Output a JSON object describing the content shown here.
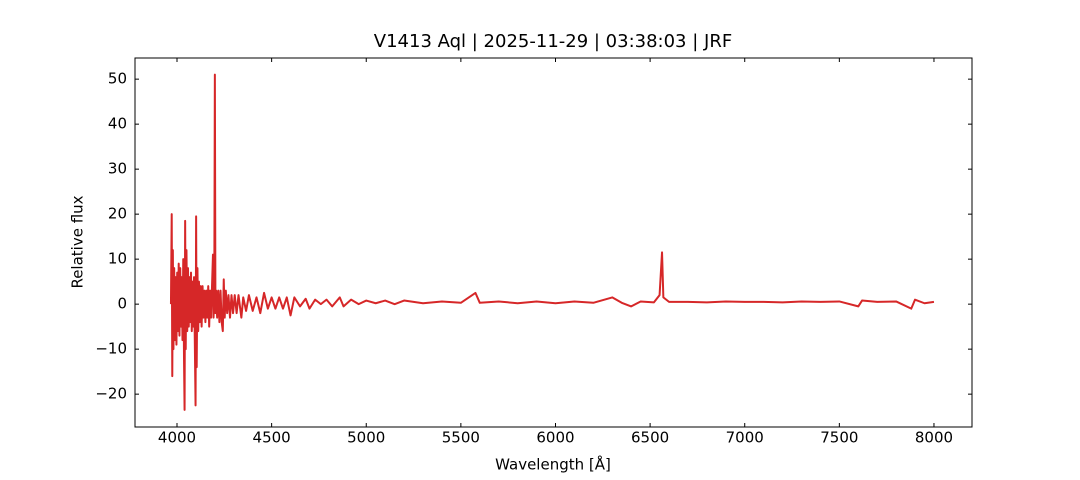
{
  "chart_data": {
    "type": "line",
    "title": "V1413 Aql | 2025-11-29 | 03:38:03 | JRF",
    "x_label": "Wavelength [Å]",
    "y_label": "Relative flux",
    "xlim": [
      3778,
      8201
    ],
    "ylim": [
      -27.3,
      54.7
    ],
    "xticks": [
      4000,
      4500,
      5000,
      5500,
      6000,
      6500,
      7000,
      7500,
      8000
    ],
    "yticks": [
      {
        "value": -20,
        "label": "−20"
      },
      {
        "value": -10,
        "label": "−10"
      },
      0,
      10,
      20,
      30,
      40,
      50
    ],
    "series": [
      {
        "color": "#d62728",
        "x": [
          3968,
          3972,
          3975,
          3978,
          3981,
          3985,
          3989,
          3993,
          3997,
          4001,
          4005,
          4009,
          4013,
          4017,
          4021,
          4025,
          4029,
          4033,
          4037,
          4040,
          4043,
          4046,
          4050,
          4054,
          4058,
          4062,
          4066,
          4070,
          4074,
          4078,
          4082,
          4086,
          4090,
          4094,
          4098,
          4101,
          4104,
          4108,
          4112,
          4116,
          4120,
          4125,
          4130,
          4135,
          4140,
          4145,
          4150,
          4155,
          4160,
          4165,
          4170,
          4175,
          4180,
          4185,
          4190,
          4193,
          4197,
          4200,
          4203,
          4207,
          4212,
          4218,
          4224,
          4230,
          4236,
          4242,
          4247,
          4252,
          4258,
          4265,
          4272,
          4280,
          4288,
          4296,
          4305,
          4315,
          4325,
          4340,
          4350,
          4365,
          4380,
          4400,
          4420,
          4440,
          4460,
          4480,
          4500,
          4520,
          4540,
          4560,
          4580,
          4600,
          4620,
          4650,
          4680,
          4700,
          4730,
          4760,
          4790,
          4820,
          4860,
          4880,
          4920,
          4960,
          5000,
          5050,
          5100,
          5150,
          5200,
          5300,
          5400,
          5500,
          5577,
          5600,
          5700,
          5800,
          5900,
          6000,
          6100,
          6200,
          6300,
          6350,
          6400,
          6450,
          6520,
          6550,
          6563,
          6570,
          6600,
          6700,
          6800,
          6900,
          7000,
          7100,
          7200,
          7300,
          7400,
          7500,
          7600,
          7620,
          7700,
          7800,
          7880,
          7900,
          7950,
          8000
        ],
        "values": [
          0,
          20,
          -16,
          12,
          -10,
          8,
          -8,
          6,
          -9,
          7,
          -6,
          9,
          -7,
          8,
          -5,
          6,
          -8,
          10,
          -12,
          -23.5,
          18.5,
          -10,
          12,
          -6,
          8,
          -5,
          6,
          -4,
          7,
          -6,
          5,
          -5,
          6,
          -8,
          -22.5,
          19.5,
          -14,
          8,
          -6,
          5,
          -4,
          4,
          -5,
          4,
          -3,
          3,
          -4,
          3,
          -3,
          4,
          -5,
          3,
          -3,
          4,
          11,
          -3,
          2,
          51,
          -2,
          3,
          -3,
          3,
          -4,
          3,
          -4,
          -6,
          5.5,
          -3,
          3,
          -2,
          2,
          -3,
          2,
          -2,
          2,
          -2,
          2,
          -3,
          1.5,
          -1.5,
          2,
          -1.5,
          1.5,
          -2,
          2.5,
          -1,
          1.5,
          -1,
          1.5,
          -1,
          1.5,
          -2.5,
          1.5,
          -0.5,
          1.2,
          -1,
          1,
          0,
          1,
          -0.5,
          1.5,
          -0.5,
          1,
          0,
          0.8,
          0.2,
          0.8,
          0,
          0.8,
          0.2,
          0.6,
          0.3,
          2.5,
          0.3,
          0.6,
          0.2,
          0.6,
          0.2,
          0.6,
          0.3,
          1.5,
          0.3,
          -0.5,
          0.6,
          0.4,
          2,
          11.5,
          1.5,
          0.5,
          0.5,
          0.4,
          0.6,
          0.5,
          0.5,
          0.4,
          0.6,
          0.5,
          0.6,
          -0.5,
          0.8,
          0.5,
          0.6,
          -1,
          1,
          0.2,
          0.5
        ]
      }
    ]
  }
}
